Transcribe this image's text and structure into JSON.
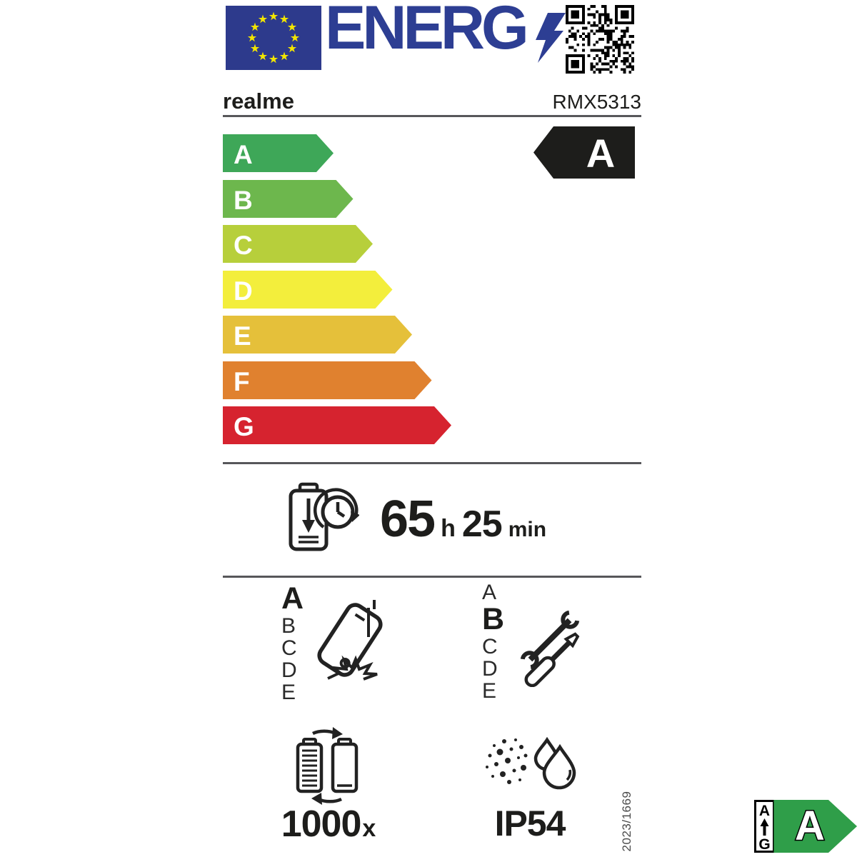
{
  "label": {
    "logo": {
      "text": "ENERG",
      "flag_icon": "eu-flag",
      "bolt_icon": "lightning-bolt",
      "qr_icon": "qr-code"
    },
    "brand": "realme",
    "model": "RMX5313",
    "energy_scale": {
      "classes": [
        "A",
        "B",
        "C",
        "D",
        "E",
        "F",
        "G"
      ],
      "colors": [
        "#3EA758",
        "#6DB74D",
        "#B7CF3B",
        "#F3EE3C",
        "#E5C03A",
        "#E0812F",
        "#D6232F"
      ],
      "rating": "A",
      "rating_bg": "#1d1d1b"
    },
    "battery_endurance": {
      "hours": "65",
      "hours_unit": "h",
      "minutes": "25",
      "minutes_unit": "min"
    },
    "drop_reliability": {
      "scale": [
        "A",
        "B",
        "C",
        "D",
        "E"
      ],
      "rating": "A"
    },
    "repairability": {
      "scale": [
        "A",
        "B",
        "C",
        "D",
        "E"
      ],
      "rating": "B"
    },
    "battery_cycles": {
      "value": "1000",
      "suffix": "x"
    },
    "ingress_protection": {
      "value": "IP54"
    },
    "regulation": "2023/1669",
    "mini_label": {
      "top": "A",
      "bottom": "G",
      "rating": "A",
      "color": "#2F9E49"
    }
  }
}
